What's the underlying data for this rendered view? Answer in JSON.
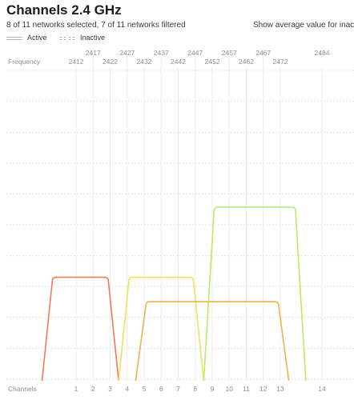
{
  "header": {
    "title": "Channels 2.4 GHz",
    "subtitle": "8 of 11 networks selected, 7 of 11 networks filtered",
    "avg_link": "Show average value for inacti"
  },
  "legend": {
    "active_label": "Active",
    "inactive_label": "Inactive"
  },
  "axis": {
    "frequency_label": "Frequency",
    "channels_label": "Channels"
  },
  "chart_data": {
    "type": "area",
    "x_frequency_ticks_lower": [
      "2412",
      "2422",
      "2432",
      "2442",
      "2452",
      "2462",
      "2472"
    ],
    "x_frequency_ticks_upper": [
      "2417",
      "2427",
      "2437",
      "2447",
      "2457",
      "2467",
      "2484"
    ],
    "x_channel_ticks": [
      "1",
      "2",
      "3",
      "4",
      "5",
      "6",
      "7",
      "8",
      "9",
      "10",
      "11",
      "12",
      "13",
      "14"
    ],
    "grid": true,
    "series": [
      {
        "color": "#f07a55",
        "channel_low": -1,
        "channel_high": 3.5,
        "level": 0.34
      },
      {
        "color": "#f2e05a",
        "channel_low": 3.5,
        "channel_high": 8.5,
        "level": 0.34
      },
      {
        "color": "#f3b04d",
        "channel_low": 4.5,
        "channel_high": 13.5,
        "level": 0.26
      },
      {
        "color": "#b6ec6a",
        "channel_low": 8.5,
        "channel_high": 14.5,
        "level": 0.57
      }
    ]
  }
}
